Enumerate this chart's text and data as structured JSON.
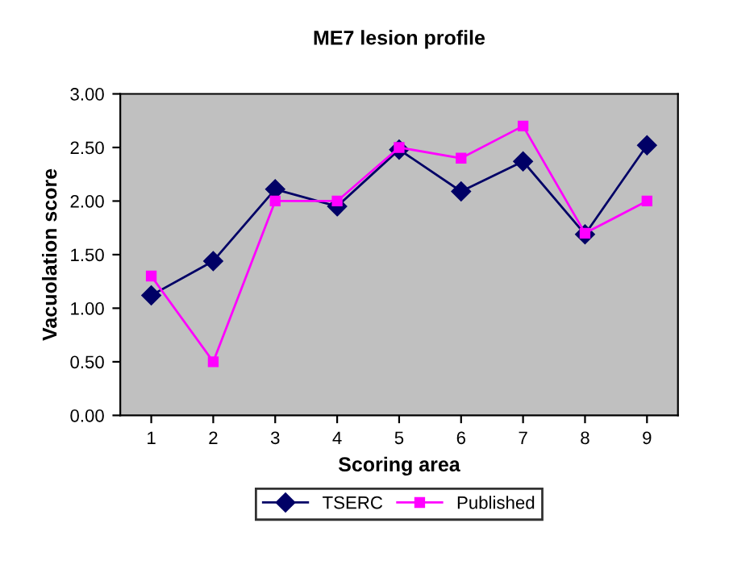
{
  "chart_data": {
    "type": "line",
    "title": "ME7 lesion profile",
    "xlabel": "Scoring area",
    "ylabel": "Vacuolation score",
    "categories": [
      "1",
      "2",
      "3",
      "4",
      "5",
      "6",
      "7",
      "8",
      "9"
    ],
    "series": [
      {
        "name": "TSERC",
        "color": "#000066",
        "marker": "diamond",
        "values": [
          1.12,
          1.44,
          2.11,
          1.95,
          2.48,
          2.09,
          2.37,
          1.69,
          2.52
        ]
      },
      {
        "name": "Published",
        "color": "#ff00ff",
        "marker": "square",
        "values": [
          1.3,
          0.5,
          2.0,
          2.0,
          2.5,
          2.4,
          2.7,
          1.7,
          2.0
        ]
      }
    ],
    "ylim": [
      0,
      3
    ],
    "yticks": [
      {
        "value": 0,
        "label": "0.00"
      },
      {
        "value": 0.5,
        "label": "0.50"
      },
      {
        "value": 1,
        "label": "1.00"
      },
      {
        "value": 1.5,
        "label": "1.50"
      },
      {
        "value": 2,
        "label": "2.00"
      },
      {
        "value": 2.5,
        "label": "2.50"
      },
      {
        "value": 3,
        "label": "3.00"
      }
    ],
    "grid": false,
    "legend": "bottom",
    "line_style": "solid"
  }
}
